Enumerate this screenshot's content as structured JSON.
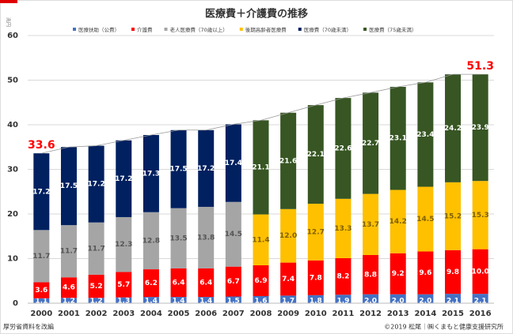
{
  "chart_data": {
    "type": "stacked_bar",
    "title": "医療費＋介護費の推移",
    "y_label": "兆円",
    "categories": [
      "2000",
      "2001",
      "2002",
      "2003",
      "2004",
      "2005",
      "2006",
      "2007",
      "2008",
      "2009",
      "2010",
      "2011",
      "2012",
      "2013",
      "2014",
      "2015",
      "2016"
    ],
    "series": [
      {
        "name": "医療扶助（公費）",
        "color": "#4472c4",
        "values": [
          1.1,
          1.2,
          1.2,
          1.3,
          1.4,
          1.4,
          1.4,
          1.5,
          1.6,
          1.7,
          1.8,
          1.9,
          2.0,
          2.0,
          2.0,
          2.1,
          2.1
        ],
        "value_labels": [
          "1.1",
          "1.2",
          "1.2",
          "1.3",
          "1.4",
          "1.4",
          "1.4",
          "1.5",
          "1.6",
          "1.7",
          "1.8",
          "1.9",
          "2.0",
          "2.0",
          "2.0",
          "2.1",
          "2.1"
        ]
      },
      {
        "name": "介護費",
        "color": "#ff0000",
        "values": [
          3.6,
          4.6,
          5.2,
          5.7,
          6.2,
          6.4,
          6.4,
          6.7,
          6.9,
          7.4,
          7.8,
          8.2,
          8.8,
          9.2,
          9.6,
          9.8,
          10.0
        ],
        "value_labels": [
          "3.6",
          "4.6",
          "5.2",
          "5.7",
          "6.2",
          "6.4",
          "6.4",
          "6.7",
          "6.9",
          "7.4",
          "7.8",
          "8.2",
          "8.8",
          "9.2",
          "9.6",
          "9.8",
          "10.0"
        ]
      },
      {
        "name": "老人医療費（70歳以上）",
        "color": "#a5a5a5",
        "values": [
          11.7,
          11.7,
          11.7,
          12.3,
          12.8,
          13.5,
          13.8,
          14.5,
          null,
          null,
          null,
          null,
          null,
          null,
          null,
          null,
          null
        ]
      },
      {
        "name": "後期高齢者医療費",
        "color": "#ffc000",
        "values": [
          null,
          null,
          null,
          null,
          null,
          null,
          null,
          null,
          11.4,
          12.0,
          12.7,
          13.3,
          13.7,
          14.2,
          14.5,
          15.2,
          15.3
        ],
        "value_labels": [
          null,
          null,
          null,
          null,
          null,
          null,
          null,
          null,
          "11.4",
          "12.0",
          "12.7",
          "13.3",
          "13.7",
          "14.2",
          "14.5",
          "15.2",
          "15.3"
        ]
      },
      {
        "name": "医療費（70歳未満）",
        "color": "#002060",
        "values": [
          17.2,
          17.5,
          17.2,
          17.2,
          17.3,
          17.5,
          17.2,
          17.4,
          null,
          null,
          null,
          null,
          null,
          null,
          null,
          null,
          null
        ]
      },
      {
        "name": "医療費（75歳未満）",
        "color": "#375623",
        "values": [
          null,
          null,
          null,
          null,
          null,
          null,
          null,
          null,
          21.1,
          21.6,
          22.1,
          22.6,
          22.7,
          23.1,
          23.4,
          24.2,
          23.9
        ]
      }
    ],
    "annotations": [
      {
        "x": "2000",
        "value": 33.6
      },
      {
        "x": "2016",
        "value": 51.3
      }
    ],
    "ylim": [
      0,
      60
    ],
    "yticks": [
      0,
      10,
      20,
      30,
      40,
      50,
      60
    ],
    "grid": true,
    "source": "厚労省資料を改編",
    "credit": "©2019  松尾｜㈱くまもと健康支援研究所"
  }
}
